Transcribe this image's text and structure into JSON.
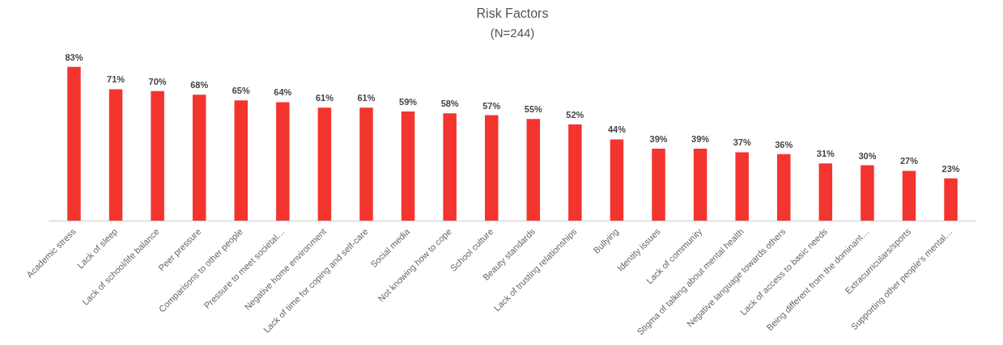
{
  "chart_data": {
    "type": "bar",
    "title": "Risk Factors",
    "subtitle": "(N=244)",
    "categories": [
      "Academic stress",
      "Lack of sleep",
      "Lack of school/life balance",
      "Peer pressure",
      "Comparisons to other people",
      "Pressure to meet societal…",
      "Negative home environment",
      "Lack of time for coping and self-care",
      "Social media",
      "Not knowing how to cope",
      "School culture",
      "Beauty standards",
      "Lack of trusting relationships",
      "Bullying",
      "Identity issues",
      "Lack of community",
      "Stigma of talking about mental health",
      "Negative language towards others",
      "Lack of access to basic needs",
      "Being different from the dominant…",
      "Extracurriculars/sports",
      "Supporting other people's mental…"
    ],
    "values": [
      83,
      71,
      70,
      68,
      65,
      64,
      61,
      61,
      59,
      58,
      57,
      55,
      52,
      44,
      39,
      39,
      37,
      36,
      31,
      30,
      27,
      23
    ],
    "value_labels": [
      "83%",
      "71%",
      "70%",
      "68%",
      "65%",
      "64%",
      "61%",
      "61%",
      "59%",
      "58%",
      "57%",
      "55%",
      "52%",
      "44%",
      "39%",
      "39%",
      "37%",
      "36%",
      "31%",
      "30%",
      "27%",
      "23%"
    ],
    "color": "#f4342f",
    "grid": false
  }
}
